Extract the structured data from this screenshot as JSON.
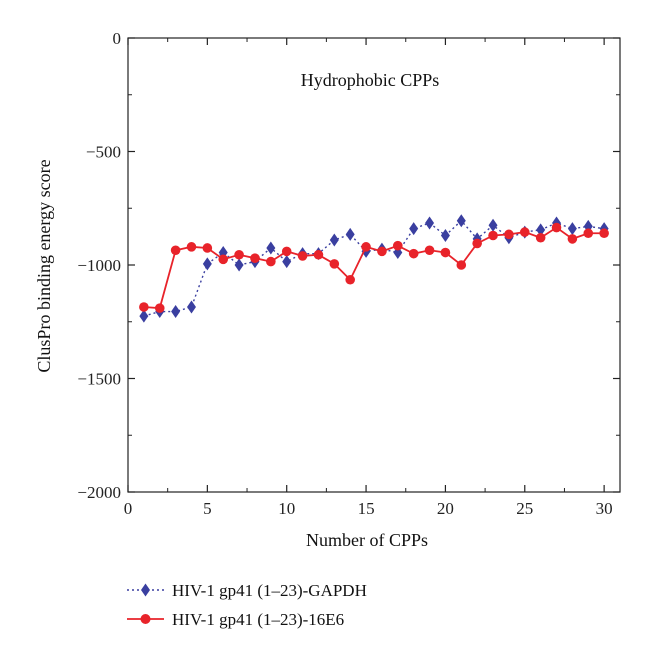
{
  "chart_data": {
    "type": "line",
    "title": "Hydrophobic CPPs",
    "xlabel": "Number of CPPs",
    "ylabel": "ClusPro binding energy score",
    "xlim": [
      0,
      31
    ],
    "ylim": [
      -2000,
      0
    ],
    "x_ticks": [
      0,
      5,
      10,
      15,
      20,
      25,
      30
    ],
    "y_ticks": [
      0,
      -500,
      -1000,
      -1500,
      -2000
    ],
    "y_tick_labels": [
      "0",
      "−500",
      "−1000",
      "−1500",
      "−2000"
    ],
    "legend_position": "bottom",
    "x": [
      1,
      2,
      3,
      4,
      5,
      6,
      7,
      8,
      9,
      10,
      11,
      12,
      13,
      14,
      15,
      16,
      17,
      18,
      19,
      20,
      21,
      22,
      23,
      24,
      25,
      26,
      27,
      28,
      29,
      30
    ],
    "series": [
      {
        "name": "HIV-1 gp41 (1–23)-GAPDH",
        "color": "#3a3fa0",
        "marker": "diamond",
        "line_style": "dotted",
        "values": [
          -1225,
          -1205,
          -1205,
          -1185,
          -995,
          -945,
          -1000,
          -985,
          -925,
          -985,
          -950,
          -950,
          -890,
          -865,
          -940,
          -930,
          -945,
          -840,
          -815,
          -870,
          -805,
          -885,
          -825,
          -880,
          -855,
          -845,
          -815,
          -840,
          -830,
          -840
        ]
      },
      {
        "name": "HIV-1 gp41 (1–23)-16E6",
        "color": "#e8232a",
        "marker": "circle",
        "line_style": "solid",
        "values": [
          -1185,
          -1190,
          -935,
          -920,
          -925,
          -975,
          -955,
          -970,
          -985,
          -940,
          -960,
          -955,
          -995,
          -1065,
          -920,
          -940,
          -915,
          -950,
          -935,
          -945,
          -1000,
          -905,
          -870,
          -865,
          -855,
          -880,
          -835,
          -885,
          -860,
          -860
        ]
      }
    ]
  }
}
